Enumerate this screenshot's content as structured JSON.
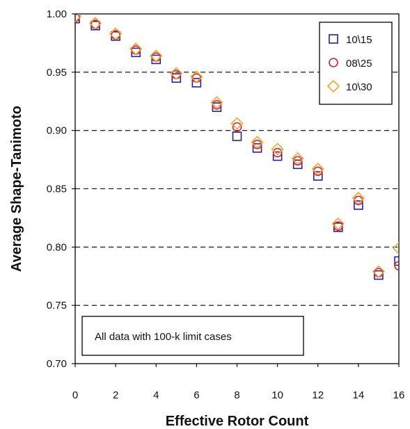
{
  "chart_data": {
    "type": "scatter",
    "xlabel": "Effective Rotor Count",
    "ylabel": "Average Shape-Tanimoto",
    "xlim": [
      0,
      16
    ],
    "ylim": [
      0.7,
      1.0
    ],
    "xticks": [
      "0",
      "2",
      "4",
      "6",
      "8",
      "10",
      "12",
      "14",
      "16"
    ],
    "yticks": [
      "0.70",
      "0.75",
      "0.80",
      "0.85",
      "0.90",
      "0.95",
      "1.00"
    ],
    "grid": "horizontal dashed",
    "legend_position": "top-right",
    "annotation": "All data with 100-k limit cases",
    "series": [
      {
        "name": "10\\15",
        "marker": "square",
        "color": "#1f1fb4",
        "x": [
          0,
          1,
          2,
          3,
          4,
          5,
          6,
          7,
          8,
          9,
          10,
          11,
          12,
          13,
          14,
          15,
          16
        ],
        "y": [
          0.996,
          0.99,
          0.981,
          0.967,
          0.961,
          0.945,
          0.941,
          0.92,
          0.895,
          0.885,
          0.878,
          0.871,
          0.861,
          0.817,
          0.836,
          0.776,
          0.788
        ]
      },
      {
        "name": "08\\25",
        "marker": "circle",
        "color": "#e0202a",
        "x": [
          0,
          1,
          2,
          3,
          4,
          5,
          6,
          7,
          8,
          9,
          10,
          11,
          12,
          13,
          14,
          15,
          16
        ],
        "y": [
          0.997,
          0.991,
          0.982,
          0.969,
          0.963,
          0.948,
          0.945,
          0.922,
          0.903,
          0.888,
          0.881,
          0.874,
          0.865,
          0.818,
          0.84,
          0.778,
          0.784
        ]
      },
      {
        "name": "10\\30",
        "marker": "diamond",
        "color": "#f5a623",
        "x": [
          0,
          1,
          2,
          3,
          4,
          5,
          6,
          7,
          8,
          9,
          10,
          11,
          12,
          13,
          14,
          15,
          16
        ],
        "y": [
          0.998,
          0.992,
          0.983,
          0.97,
          0.964,
          0.949,
          0.946,
          0.924,
          0.906,
          0.89,
          0.884,
          0.876,
          0.867,
          0.82,
          0.842,
          0.779,
          0.799
        ]
      }
    ]
  }
}
